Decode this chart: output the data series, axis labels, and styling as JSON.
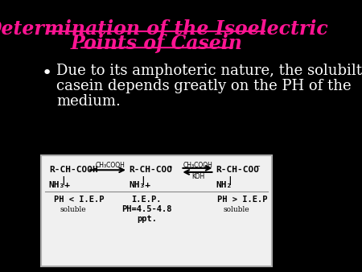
{
  "background_color": "#000000",
  "title_line1": "Determination of the Isoelectric",
  "title_line2": "Points of Casein",
  "title_color": "#FF1493",
  "title_fontsize": 17,
  "bullet_text_line1": "Due to its amphoteric nature, the solubilty of",
  "bullet_text_line2": "casein depends greatly on the PH of the",
  "bullet_text_line3": "medium.",
  "bullet_color": "#ffffff",
  "bullet_fontsize": 13,
  "box_bg": "#f0f0f0",
  "box_edge": "#aaaaaa",
  "diagram_text_color": "#000000"
}
